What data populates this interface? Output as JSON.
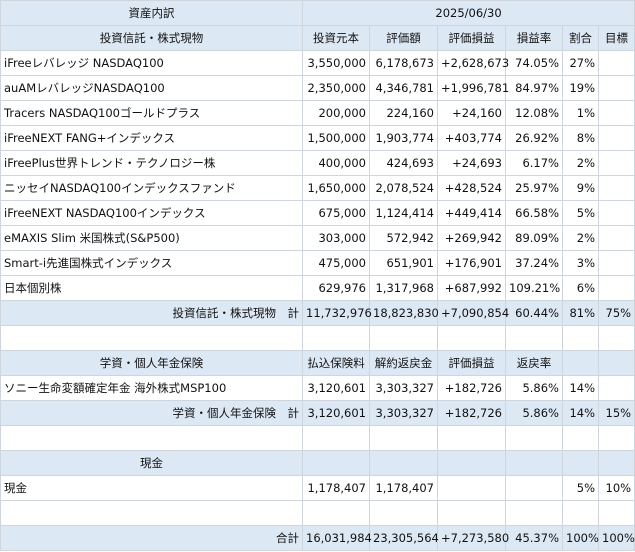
{
  "header": {
    "title": "資産内訳",
    "date": "2025/06/30"
  },
  "section1": {
    "title": "投資信託・株式現物",
    "columns": [
      "投資元本",
      "評価額",
      "評価損益",
      "損益率",
      "割合",
      "目標"
    ],
    "rows": [
      {
        "name": "iFreeレバレッジ NASDAQ100",
        "principal": "3,550,000",
        "value": "6,178,673",
        "gain": "+2,628,673",
        "rate": "74.05%",
        "share": "27%",
        "target": ""
      },
      {
        "name": "auAMレバレッジNASDAQ100",
        "principal": "2,350,000",
        "value": "4,346,781",
        "gain": "+1,996,781",
        "rate": "84.97%",
        "share": "19%",
        "target": ""
      },
      {
        "name": "Tracers NASDAQ100ゴールドプラス",
        "principal": "200,000",
        "value": "224,160",
        "gain": "+24,160",
        "rate": "12.08%",
        "share": "1%",
        "target": ""
      },
      {
        "name": "iFreeNEXT FANG+インデックス",
        "principal": "1,500,000",
        "value": "1,903,774",
        "gain": "+403,774",
        "rate": "26.92%",
        "share": "8%",
        "target": ""
      },
      {
        "name": "iFreePlus世界トレンド・テクノロジー株",
        "principal": "400,000",
        "value": "424,693",
        "gain": "+24,693",
        "rate": "6.17%",
        "share": "2%",
        "target": ""
      },
      {
        "name": "ニッセイNASDAQ100インデックスファンド",
        "principal": "1,650,000",
        "value": "2,078,524",
        "gain": "+428,524",
        "rate": "25.97%",
        "share": "9%",
        "target": ""
      },
      {
        "name": "iFreeNEXT NASDAQ100インデックス",
        "principal": "675,000",
        "value": "1,124,414",
        "gain": "+449,414",
        "rate": "66.58%",
        "share": "5%",
        "target": ""
      },
      {
        "name": "eMAXIS Slim 米国株式(S&P500)",
        "principal": "303,000",
        "value": "572,942",
        "gain": "+269,942",
        "rate": "89.09%",
        "share": "2%",
        "target": ""
      },
      {
        "name": "Smart-i先進国株式インデックス",
        "principal": "475,000",
        "value": "651,901",
        "gain": "+176,901",
        "rate": "37.24%",
        "share": "3%",
        "target": ""
      },
      {
        "name": "日本個別株",
        "principal": "629,976",
        "value": "1,317,968",
        "gain": "+687,992",
        "rate": "109.21%",
        "share": "6%",
        "target": ""
      }
    ],
    "total": {
      "label": "投資信託・株式現物　計",
      "principal": "11,732,976",
      "value": "18,823,830",
      "gain": "+7,090,854",
      "rate": "60.44%",
      "share": "81%",
      "target": "75%"
    }
  },
  "section2": {
    "title": "学資・個人年金保険",
    "columns": [
      "払込保険料",
      "解約返戻金",
      "評価損益",
      "返戻率"
    ],
    "rows": [
      {
        "name": "ソニー生命変額確定年金 海外株式MSP100",
        "paid": "3,120,601",
        "refund": "3,303,327",
        "gain": "+182,726",
        "rate": "5.86%",
        "share": "14%",
        "target": ""
      }
    ],
    "total": {
      "label": "学資・個人年金保険　計",
      "paid": "3,120,601",
      "refund": "3,303,327",
      "gain": "+182,726",
      "rate": "5.86%",
      "share": "14%",
      "target": "15%"
    }
  },
  "section3": {
    "title": "現金",
    "row": {
      "name": "現金",
      "a": "1,178,407",
      "b": "1,178,407",
      "share": "5%",
      "target": "10%"
    }
  },
  "grand_total": {
    "label": "合計",
    "principal": "16,031,984",
    "value": "23,305,564",
    "gain": "+7,273,580",
    "rate": "45.37%",
    "share": "100%",
    "target": "100%"
  },
  "colors": {
    "header_bg": "#dde8f5",
    "border": "#cfd5dd"
  }
}
